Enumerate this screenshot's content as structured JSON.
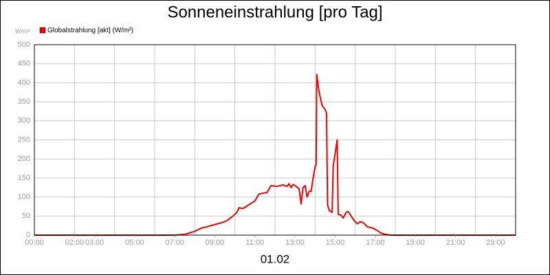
{
  "chart_data": {
    "type": "line",
    "title": "Sonneneinstrahlung [pro Tag]",
    "y_unit": "W/m²",
    "x_label": "01.02",
    "xlim": [
      0,
      24
    ],
    "ylim": [
      0,
      500
    ],
    "yticks": [
      0,
      50,
      100,
      150,
      200,
      250,
      300,
      350,
      400,
      450,
      500
    ],
    "xticks": [
      {
        "value": 0,
        "label": "00:00"
      },
      {
        "value": 2,
        "label": "02:00"
      },
      {
        "value": 3,
        "label": "03:00"
      },
      {
        "value": 5,
        "label": "05:00"
      },
      {
        "value": 7,
        "label": "07:00"
      },
      {
        "value": 9,
        "label": "09:00"
      },
      {
        "value": 11,
        "label": "11:00"
      },
      {
        "value": 13,
        "label": "13:00"
      },
      {
        "value": 15,
        "label": "15:00"
      },
      {
        "value": 17,
        "label": "17:00"
      },
      {
        "value": 19,
        "label": "19:00"
      },
      {
        "value": 21,
        "label": "21:00"
      },
      {
        "value": 23,
        "label": "23:00"
      }
    ],
    "xgrid": [
      0,
      2,
      4,
      6,
      8,
      10,
      12,
      14,
      16,
      18,
      20,
      22,
      24
    ],
    "grid": true,
    "x": [
      0,
      7.0,
      7.5,
      8.0,
      8.3,
      8.6,
      9.0,
      9.3,
      9.6,
      9.9,
      10.1,
      10.2,
      10.4,
      10.7,
      11.0,
      11.2,
      11.4,
      11.6,
      11.8,
      12.1,
      12.4,
      12.6,
      12.7,
      12.8,
      12.9,
      13.0,
      13.2,
      13.3,
      13.4,
      13.5,
      13.6,
      13.7,
      13.8,
      13.9,
      14.0,
      14.05,
      14.08,
      14.2,
      14.35,
      14.5,
      14.57,
      14.62,
      14.7,
      14.85,
      14.9,
      15.0,
      15.1,
      15.15,
      15.3,
      15.4,
      15.55,
      15.65,
      15.8,
      15.95,
      16.1,
      16.25,
      16.4,
      16.6,
      16.9,
      17.1,
      17.3,
      17.5,
      17.8,
      24
    ],
    "series": [
      {
        "name": "Globalstrahlung [akt] (W/m²)",
        "color": "#ee0000",
        "values": [
          0,
          0,
          2,
          10,
          18,
          22,
          28,
          32,
          38,
          50,
          60,
          72,
          70,
          80,
          90,
          108,
          110,
          112,
          130,
          128,
          132,
          128,
          135,
          125,
          133,
          130,
          122,
          82,
          125,
          130,
          100,
          115,
          115,
          150,
          180,
          185,
          422,
          375,
          340,
          330,
          320,
          80,
          65,
          60,
          180,
          215,
          250,
          55,
          52,
          45,
          60,
          62,
          50,
          38,
          30,
          35,
          33,
          22,
          18,
          12,
          5,
          2,
          0,
          0
        ]
      }
    ]
  }
}
